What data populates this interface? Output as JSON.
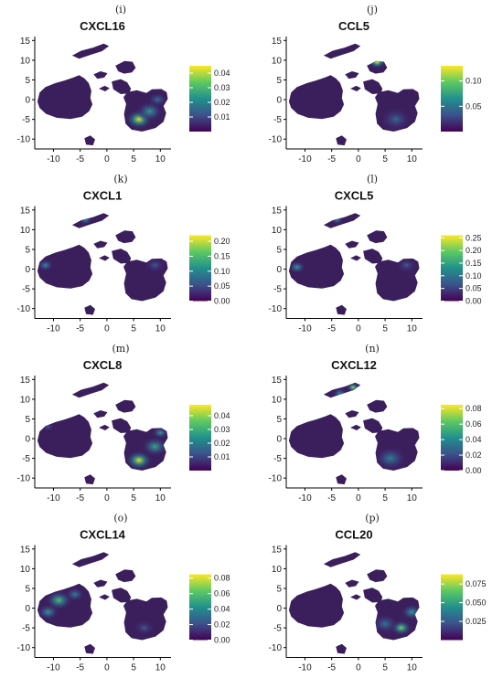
{
  "colors": {
    "viridis": [
      "#440154",
      "#3b528b",
      "#21908d",
      "#5dc963",
      "#fde725"
    ],
    "background_cluster": "#3a1f5c"
  },
  "chart_data": [
    {
      "type": "heatmap",
      "panel": "(i)",
      "title": "CXCL16",
      "x_ticks": [
        "-10",
        "-5",
        "0",
        "5",
        "10"
      ],
      "y_ticks": [
        "15",
        "10",
        "5",
        "0",
        "-5",
        "-10"
      ],
      "xlim": [
        -13.5,
        12
      ],
      "ylim": [
        -12.5,
        16
      ],
      "colorbar": {
        "ticks": [
          "0.04",
          "0.03",
          "0.02",
          "0.01"
        ],
        "tick_values": [
          0.04,
          0.03,
          0.02,
          0.01
        ],
        "range": [
          0,
          0.045
        ]
      },
      "hotspots": [
        {
          "x": 6,
          "y": -5,
          "level": 0.95,
          "r": 2.5
        },
        {
          "x": 8,
          "y": -3,
          "level": 0.55,
          "r": 2.5
        },
        {
          "x": 9.5,
          "y": 0,
          "level": 0.4,
          "r": 1.8
        }
      ]
    },
    {
      "type": "heatmap",
      "panel": "(j)",
      "title": "CCL5",
      "x_ticks": [
        "-10",
        "-5",
        "0",
        "5",
        "10"
      ],
      "y_ticks": [
        "15",
        "10",
        "5",
        "0",
        "-5",
        "-10"
      ],
      "xlim": [
        -13.5,
        12
      ],
      "ylim": [
        -12.5,
        16
      ],
      "colorbar": {
        "ticks": [
          "0.10",
          "0.05"
        ],
        "tick_values": [
          0.1,
          0.05
        ],
        "range": [
          0,
          0.13
        ]
      },
      "hotspots": [
        {
          "x": 3.5,
          "y": 9.5,
          "level": 0.95,
          "r": 1.6
        },
        {
          "x": 7,
          "y": -5,
          "level": 0.35,
          "r": 3
        }
      ]
    },
    {
      "type": "heatmap",
      "panel": "(k)",
      "title": "CXCL1",
      "x_ticks": [
        "-10",
        "-5",
        "0",
        "5",
        "10"
      ],
      "y_ticks": [
        "15",
        "10",
        "5",
        "0",
        "-5",
        "-10"
      ],
      "xlim": [
        -13.5,
        12
      ],
      "ylim": [
        -12.5,
        16
      ],
      "colorbar": {
        "ticks": [
          "0.20",
          "0.15",
          "0.10",
          "0.05",
          "0.00"
        ],
        "tick_values": [
          0.2,
          0.15,
          0.1,
          0.05,
          0.0
        ],
        "range": [
          0,
          0.22
        ]
      },
      "hotspots": [
        {
          "x": -11.5,
          "y": 1,
          "level": 0.5,
          "r": 1.5
        },
        {
          "x": -4,
          "y": 12.5,
          "level": 0.5,
          "r": 1.2
        },
        {
          "x": 9,
          "y": 1,
          "level": 0.3,
          "r": 2
        }
      ]
    },
    {
      "type": "heatmap",
      "panel": "(l)",
      "title": "CXCL5",
      "x_ticks": [
        "-10",
        "-5",
        "0",
        "5",
        "10"
      ],
      "y_ticks": [
        "15",
        "10",
        "5",
        "0",
        "-5",
        "-10"
      ],
      "xlim": [
        -13.5,
        12
      ],
      "ylim": [
        -12.5,
        16
      ],
      "colorbar": {
        "ticks": [
          "0.25",
          "0.20",
          "0.15",
          "0.10",
          "0.05",
          "0.00"
        ],
        "tick_values": [
          0.25,
          0.2,
          0.15,
          0.1,
          0.05,
          0.0
        ],
        "range": [
          0,
          0.26
        ]
      },
      "hotspots": [
        {
          "x": -11.5,
          "y": 0.5,
          "level": 0.55,
          "r": 1.6
        },
        {
          "x": -4,
          "y": 12.5,
          "level": 0.45,
          "r": 1.2
        },
        {
          "x": 9,
          "y": 1,
          "level": 0.3,
          "r": 2
        }
      ]
    },
    {
      "type": "heatmap",
      "panel": "(m)",
      "title": "CXCL8",
      "x_ticks": [
        "-10",
        "-5",
        "0",
        "5",
        "10"
      ],
      "y_ticks": [
        "15",
        "10",
        "5",
        "0",
        "-5",
        "-10"
      ],
      "xlim": [
        -13.5,
        12
      ],
      "ylim": [
        -12.5,
        16
      ],
      "colorbar": {
        "ticks": [
          "0.04",
          "0.03",
          "0.02",
          "0.01"
        ],
        "tick_values": [
          0.04,
          0.03,
          0.02,
          0.01
        ],
        "range": [
          0,
          0.048
        ]
      },
      "hotspots": [
        {
          "x": 6,
          "y": -5.5,
          "level": 0.95,
          "r": 2.5
        },
        {
          "x": 9,
          "y": -2,
          "level": 0.6,
          "r": 2.5
        },
        {
          "x": 10,
          "y": 1.5,
          "level": 0.55,
          "r": 1.5
        },
        {
          "x": -11,
          "y": 3,
          "level": 0.3,
          "r": 1.2
        }
      ]
    },
    {
      "type": "heatmap",
      "panel": "(n)",
      "title": "CXCL12",
      "x_ticks": [
        "-10",
        "-5",
        "0",
        "5",
        "10"
      ],
      "y_ticks": [
        "15",
        "10",
        "5",
        "0",
        "-5",
        "-10"
      ],
      "xlim": [
        -13.5,
        12
      ],
      "ylim": [
        -12.5,
        16
      ],
      "colorbar": {
        "ticks": [
          "0.08",
          "0.06",
          "0.04",
          "0.02",
          "0.00"
        ],
        "tick_values": [
          0.08,
          0.06,
          0.04,
          0.02,
          0.0
        ],
        "range": [
          0,
          0.085
        ]
      },
      "hotspots": [
        {
          "x": -1,
          "y": 13,
          "level": 0.85,
          "r": 1.3
        },
        {
          "x": -3.5,
          "y": 11.5,
          "level": 0.5,
          "r": 1.3
        },
        {
          "x": 6,
          "y": -5,
          "level": 0.45,
          "r": 3
        }
      ]
    },
    {
      "type": "heatmap",
      "panel": "(o)",
      "title": "CXCL14",
      "x_ticks": [
        "-10",
        "-5",
        "0",
        "5",
        "10"
      ],
      "y_ticks": [
        "15",
        "10",
        "5",
        "0",
        "-5",
        "-10"
      ],
      "xlim": [
        -13.5,
        12
      ],
      "ylim": [
        -12.5,
        16
      ],
      "colorbar": {
        "ticks": [
          "0.08",
          "0.06",
          "0.04",
          "0.02",
          "0.00"
        ],
        "tick_values": [
          0.08,
          0.06,
          0.04,
          0.02,
          0.0
        ],
        "range": [
          0,
          0.085
        ]
      },
      "hotspots": [
        {
          "x": -9,
          "y": 2,
          "level": 0.7,
          "r": 2.5
        },
        {
          "x": -11,
          "y": -1,
          "level": 0.55,
          "r": 2
        },
        {
          "x": -6,
          "y": 3.5,
          "level": 0.45,
          "r": 1.8
        },
        {
          "x": 7,
          "y": -5,
          "level": 0.3,
          "r": 2
        }
      ]
    },
    {
      "type": "heatmap",
      "panel": "(p)",
      "title": "CCL20",
      "x_ticks": [
        "-10",
        "-5",
        "0",
        "5",
        "10"
      ],
      "y_ticks": [
        "15",
        "10",
        "5",
        "0",
        "-5",
        "-10"
      ],
      "xlim": [
        -13.5,
        12
      ],
      "ylim": [
        -12.5,
        16
      ],
      "colorbar": {
        "ticks": [
          "0.075",
          "0.050",
          "0.025"
        ],
        "tick_values": [
          0.075,
          0.05,
          0.025
        ],
        "range": [
          0,
          0.088
        ]
      },
      "hotspots": [
        {
          "x": 8,
          "y": -5,
          "level": 0.8,
          "r": 2
        },
        {
          "x": 10,
          "y": -1,
          "level": 0.55,
          "r": 2
        },
        {
          "x": 5,
          "y": -4,
          "level": 0.4,
          "r": 2.5
        }
      ]
    }
  ]
}
